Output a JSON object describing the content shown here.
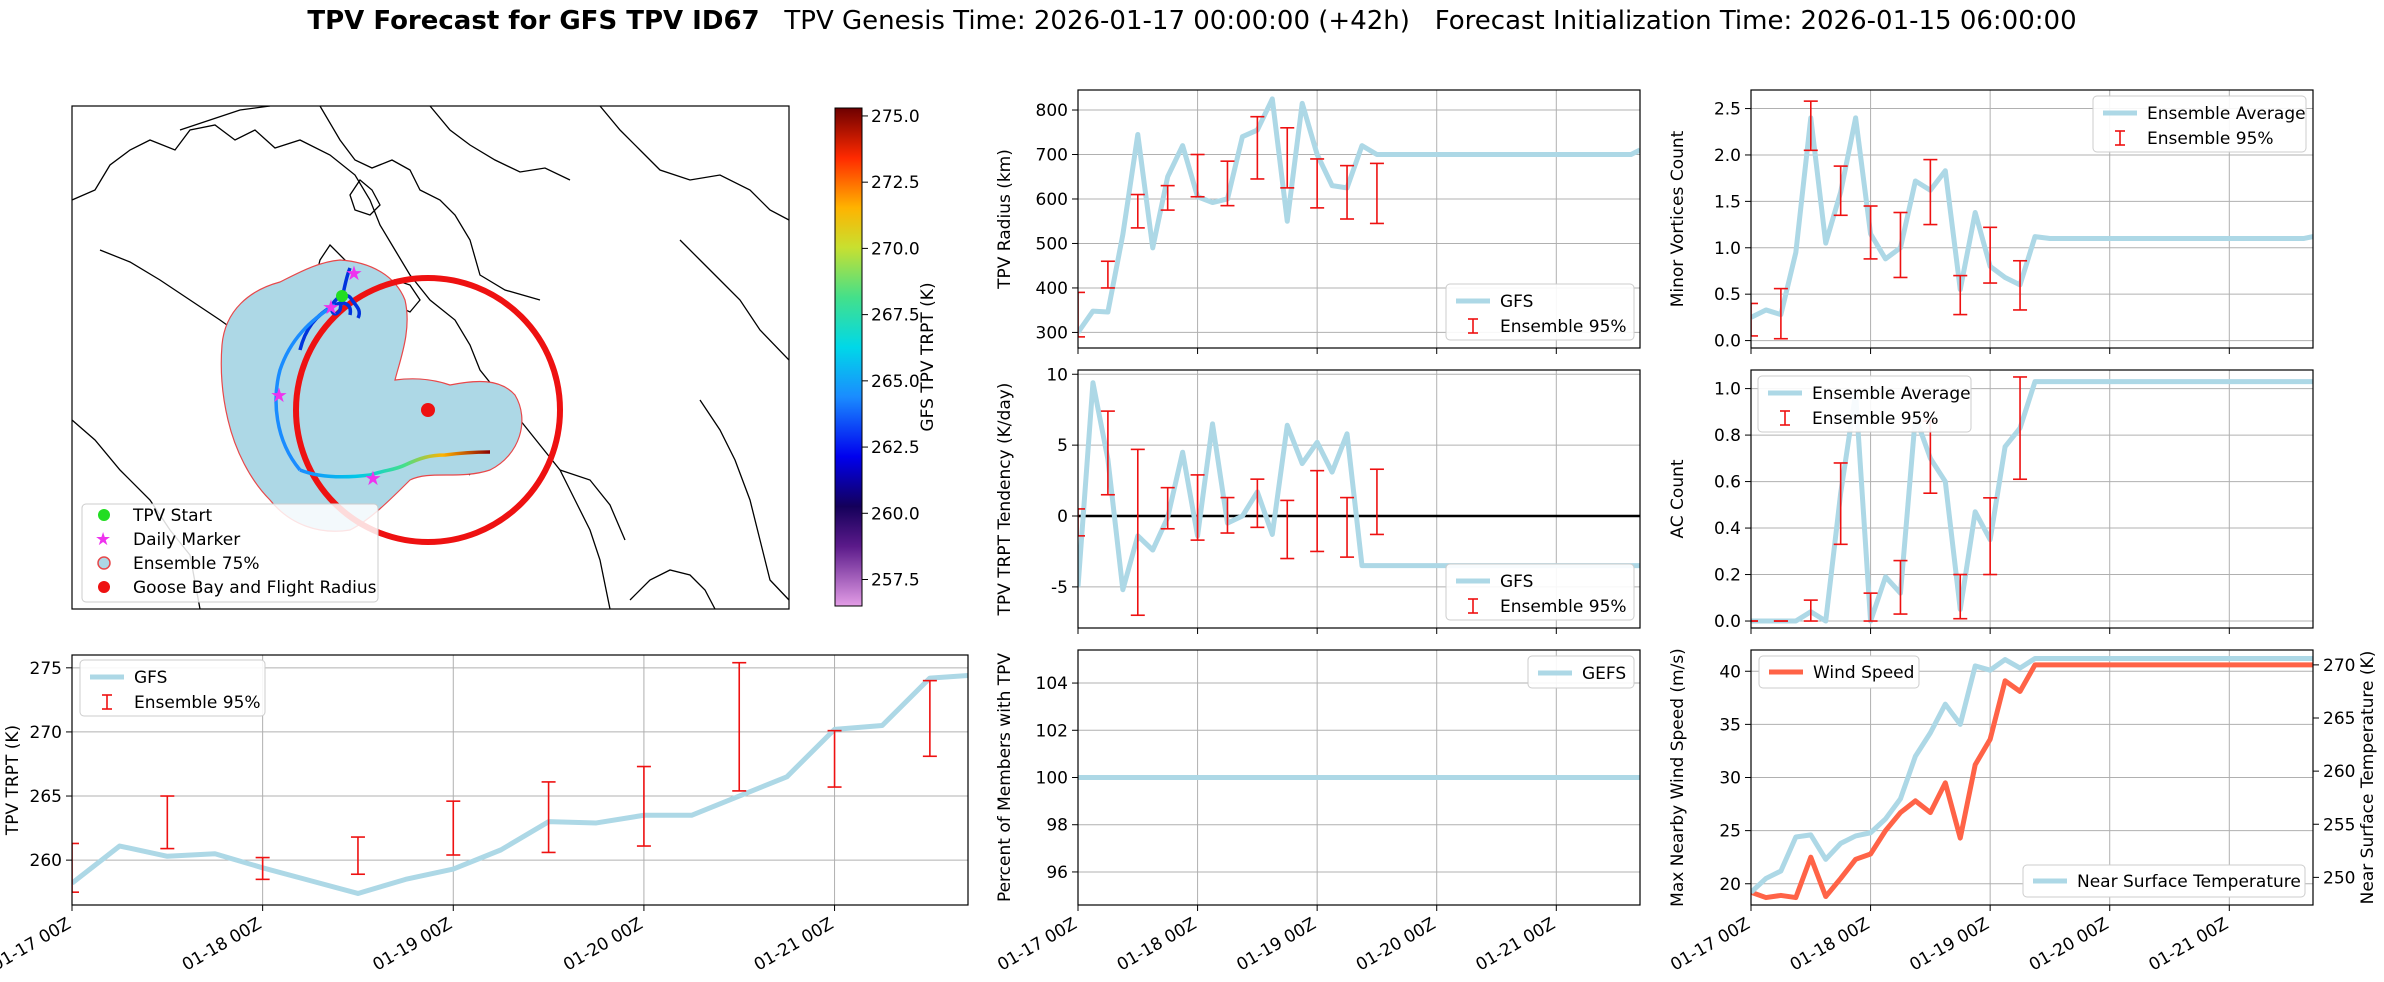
{
  "title": {
    "bold": "TPV Forecast for GFS TPV ID67",
    "genesis": "TPV Genesis Time: 2026-01-17 00:00:00 (+42h)",
    "init": "Forecast Initialization Time: 2026-01-15 06:00:00"
  },
  "map": {
    "colorbar_label": "GFS TPV TRPT (K)",
    "colorbar_ticks": [
      "275.0",
      "272.5",
      "270.0",
      "267.5",
      "265.0",
      "262.5",
      "260.0",
      "257.5"
    ],
    "colorbar_range": [
      256.5,
      275.3
    ],
    "legend": [
      "TPV Start",
      "Daily Marker",
      "Ensemble 75%",
      "Goose Bay and Flight Radius"
    ],
    "colors": {
      "start": "#22dd22",
      "daily": "#ee33ee",
      "ensemble_fill": "#add8e6",
      "ensemble_edge": "#e8484a",
      "goose": "#ee1111"
    }
  },
  "chart_data": [
    {
      "id": "trpt",
      "type": "line",
      "ylabel": "TPV TRPT (K)",
      "ylim": [
        256.5,
        276.0
      ],
      "yticks": [
        260,
        265,
        270,
        275
      ],
      "x_range": [
        0,
        4.7
      ],
      "xticks": [
        0,
        1,
        2,
        3,
        4
      ],
      "xtick_labels": [
        "01-17 00Z",
        "01-18 00Z",
        "01-19 00Z",
        "01-20 00Z",
        "01-21 00Z"
      ],
      "grid": true,
      "legend": {
        "position": "top-left",
        "entries": [
          "GFS",
          "Ensemble 95%"
        ]
      },
      "series": [
        {
          "name": "GFS",
          "x": [
            0,
            0.25,
            0.5,
            0.75,
            1.0,
            1.25,
            1.5,
            1.75,
            2.0,
            2.25,
            2.5,
            2.75,
            3.0,
            3.25,
            3.5,
            3.75,
            4.0,
            4.25,
            4.5,
            4.7
          ],
          "values": [
            258.2,
            261.1,
            260.3,
            260.5,
            259.4,
            258.4,
            257.4,
            258.5,
            259.3,
            260.8,
            263.0,
            262.9,
            263.5,
            263.5,
            265.0,
            266.5,
            270.2,
            270.5,
            274.2,
            274.4
          ]
        }
      ],
      "errorbars": {
        "name": "Ensemble 95%",
        "x": [
          0,
          0.5,
          1.0,
          1.5,
          2.0,
          2.5,
          3.0,
          3.5,
          4.0,
          4.5
        ],
        "low": [
          257.5,
          260.9,
          258.5,
          258.9,
          260.4,
          260.6,
          261.1,
          265.4,
          265.7,
          268.1
        ],
        "high": [
          261.3,
          265.0,
          260.2,
          261.8,
          264.6,
          266.1,
          267.3,
          275.4,
          270.1,
          274.0
        ]
      }
    },
    {
      "id": "radius",
      "type": "line",
      "ylabel": "TPV Radius (km)",
      "ylim": [
        265,
        845
      ],
      "yticks": [
        300,
        400,
        500,
        600,
        700,
        800
      ],
      "x_range": [
        0,
        4.7
      ],
      "xticks": [
        0,
        1,
        2,
        3,
        4
      ],
      "xtick_labels": [
        "01-17 00Z",
        "01-18 00Z",
        "01-19 00Z",
        "01-20 00Z",
        "01-21 00Z"
      ],
      "grid": true,
      "legend": {
        "position": "bottom-right",
        "entries": [
          "GFS",
          "Ensemble 95%"
        ]
      },
      "series": [
        {
          "name": "GFS",
          "x": [
            0,
            0.125,
            0.25,
            0.375,
            0.5,
            0.625,
            0.75,
            0.875,
            1.0,
            1.125,
            1.25,
            1.375,
            1.5,
            1.625,
            1.75,
            1.875,
            2.0,
            2.125,
            2.25,
            2.375,
            2.5,
            2.625,
            2.75,
            2.875,
            3.0,
            3.125,
            3.25,
            3.375,
            3.5,
            3.625,
            3.75,
            3.875,
            4.0,
            4.125,
            4.25,
            4.375,
            4.5,
            4.625,
            4.7
          ],
          "values": [
            300,
            348,
            346,
            520,
            745,
            490,
            650,
            720,
            605,
            592,
            600,
            740,
            755,
            825,
            550,
            815,
            700,
            630,
            625,
            720,
            700,
            700,
            700,
            700,
            700,
            700,
            700,
            700,
            700,
            700,
            700,
            700,
            700,
            700,
            700,
            700,
            700,
            700,
            710
          ]
        },
        {
          "name": "GFS-tail",
          "x": [],
          "values": []
        }
      ],
      "errorbars": {
        "name": "Ensemble 95%",
        "x": [
          0,
          0.25,
          0.5,
          0.75,
          1.0,
          1.25,
          1.5,
          1.75,
          2.0,
          2.25,
          2.5
        ],
        "low": [
          290,
          400,
          535,
          575,
          605,
          585,
          645,
          625,
          580,
          555,
          545
        ],
        "high": [
          390,
          460,
          610,
          630,
          700,
          685,
          785,
          760,
          690,
          675,
          680
        ]
      }
    },
    {
      "id": "minor",
      "type": "line",
      "ylabel": "Minor Vortices Count",
      "ylim": [
        -0.08,
        2.7
      ],
      "yticks": [
        0.0,
        0.5,
        1.0,
        1.5,
        2.0,
        2.5
      ],
      "ytick_labels": [
        "0.0",
        "0.5",
        "1.0",
        "1.5",
        "2.0",
        "2.5"
      ],
      "x_range": [
        0,
        4.7
      ],
      "xticks": [
        0,
        1,
        2,
        3,
        4
      ],
      "grid": true,
      "legend": {
        "position": "top-right",
        "entries": [
          "Ensemble Average",
          "Ensemble 95%"
        ]
      },
      "series": [
        {
          "name": "Ensemble Average",
          "x": [
            0,
            0.125,
            0.25,
            0.375,
            0.5,
            0.625,
            0.75,
            0.875,
            1.0,
            1.125,
            1.25,
            1.375,
            1.5,
            1.625,
            1.75,
            1.875,
            2.0,
            2.125,
            2.25,
            2.375,
            2.5,
            2.625,
            2.75,
            2.875,
            3.0,
            3.125,
            3.25,
            3.375,
            3.5,
            3.625,
            3.75,
            3.875,
            4.0,
            4.125,
            4.25,
            4.375,
            4.5,
            4.625,
            4.7
          ],
          "values": [
            0.25,
            0.33,
            0.28,
            0.95,
            2.4,
            1.05,
            1.6,
            2.4,
            1.15,
            0.88,
            1.0,
            1.72,
            1.62,
            1.83,
            0.55,
            1.38,
            0.8,
            0.68,
            0.6,
            1.12,
            1.1,
            1.1,
            1.1,
            1.1,
            1.1,
            1.1,
            1.1,
            1.1,
            1.1,
            1.1,
            1.1,
            1.1,
            1.1,
            1.1,
            1.1,
            1.1,
            1.1,
            1.1,
            1.12
          ]
        }
      ],
      "errorbars": {
        "name": "Ensemble 95%",
        "x": [
          0,
          0.25,
          0.5,
          0.75,
          1.0,
          1.25,
          1.5,
          1.75,
          2.0,
          2.25
        ],
        "low": [
          0.05,
          0.02,
          2.05,
          1.35,
          0.88,
          0.68,
          1.25,
          0.28,
          0.62,
          0.33
        ],
        "high": [
          0.4,
          0.56,
          2.58,
          1.88,
          1.45,
          1.38,
          1.95,
          0.7,
          1.22,
          0.86
        ]
      }
    },
    {
      "id": "trpt_tendency",
      "type": "line",
      "ylabel": "TPV TRPT Tendency (K/day)",
      "ylim": [
        -7.9,
        10.3
      ],
      "yticks": [
        -5,
        0,
        5,
        10
      ],
      "x_range": [
        0,
        4.7
      ],
      "xticks": [
        0,
        1,
        2,
        3,
        4
      ],
      "grid": true,
      "zero_line": true,
      "legend": {
        "position": "bottom-right",
        "entries": [
          "GFS",
          "Ensemble 95%"
        ]
      },
      "series": [
        {
          "name": "GFS",
          "x": [
            0,
            0.125,
            0.25,
            0.375,
            0.5,
            0.625,
            0.75,
            0.875,
            1.0,
            1.125,
            1.25,
            1.375,
            1.5,
            1.625,
            1.75,
            1.875,
            2.0,
            2.125,
            2.25,
            2.375,
            2.5,
            2.625,
            2.75,
            2.875,
            3.0,
            3.125,
            3.25,
            3.375,
            3.5,
            3.625,
            3.75,
            3.875,
            4.0,
            4.125,
            4.25,
            4.375,
            4.5,
            4.625,
            4.7
          ],
          "values": [
            -5.0,
            9.4,
            4.0,
            -5.2,
            -1.4,
            -2.4,
            -0.1,
            4.5,
            -1.4,
            6.5,
            -0.5,
            0,
            1.7,
            -1.3,
            6.4,
            3.7,
            5.2,
            3.1,
            5.8,
            -3.5,
            -3.5,
            -3.5,
            -3.5,
            -3.5,
            -3.5,
            -3.5,
            -3.5,
            -3.5,
            -3.5,
            -3.5,
            -3.5,
            -3.5,
            -3.5,
            -3.5,
            -3.5,
            -3.5,
            -3.5,
            -3.5,
            -3.5
          ]
        }
      ],
      "errorbars": {
        "name": "Ensemble 95%",
        "x": [
          0,
          0.25,
          0.5,
          0.75,
          1.0,
          1.25,
          1.5,
          1.75,
          2.0,
          2.25,
          2.5
        ],
        "low": [
          -1.4,
          1.5,
          -7.0,
          -0.9,
          -1.7,
          -1.2,
          -0.8,
          -3.0,
          -2.5,
          -2.9,
          -1.3
        ],
        "high": [
          0.5,
          7.4,
          4.7,
          2.0,
          2.9,
          1.3,
          2.6,
          1.1,
          3.2,
          1.3,
          3.3
        ]
      }
    },
    {
      "id": "ac_count",
      "type": "line",
      "ylabel": "AC Count",
      "ylim": [
        -0.03,
        1.08
      ],
      "yticks": [
        0.0,
        0.2,
        0.4,
        0.6,
        0.8,
        1.0
      ],
      "ytick_labels": [
        "0.0",
        "0.2",
        "0.4",
        "0.6",
        "0.8",
        "1.0"
      ],
      "x_range": [
        0,
        4.7
      ],
      "xticks": [
        0,
        1,
        2,
        3,
        4
      ],
      "grid": true,
      "legend": {
        "position": "top-left",
        "entries": [
          "Ensemble Average",
          "Ensemble 95%"
        ]
      },
      "series": [
        {
          "name": "Ensemble Average",
          "x": [
            0,
            0.125,
            0.25,
            0.375,
            0.5,
            0.625,
            0.75,
            0.875,
            1.0,
            1.125,
            1.25,
            1.375,
            1.5,
            1.625,
            1.75,
            1.875,
            2.0,
            2.125,
            2.25,
            2.375,
            2.5,
            2.625,
            2.75,
            2.875,
            3.0,
            3.125,
            3.25,
            3.375,
            3.5,
            3.625,
            3.75,
            3.875,
            4.0,
            4.125,
            4.25,
            4.375,
            4.5,
            4.625,
            4.7
          ],
          "values": [
            0,
            0,
            0,
            0,
            0.04,
            0.0,
            0.55,
            0.98,
            0,
            0.19,
            0.12,
            0.88,
            0.7,
            0.6,
            0.05,
            0.47,
            0.35,
            0.75,
            0.83,
            1.03,
            1.03,
            1.03,
            1.03,
            1.03,
            1.03,
            1.03,
            1.03,
            1.03,
            1.03,
            1.03,
            1.03,
            1.03,
            1.03,
            1.03,
            1.03,
            1.03,
            1.03,
            1.03,
            1.03
          ]
        }
      ],
      "errorbars": {
        "name": "Ensemble 95%",
        "x": [
          0,
          0.25,
          0.5,
          0.75,
          1.0,
          1.25,
          1.5,
          1.75,
          2.0,
          2.25
        ],
        "low": [
          0,
          0,
          0,
          0.33,
          0,
          0.03,
          0.55,
          0.01,
          0.2,
          0.61
        ],
        "high": [
          0,
          0,
          0.09,
          0.68,
          0.12,
          0.26,
          0.86,
          0.2,
          0.53,
          1.05
        ]
      }
    },
    {
      "id": "members",
      "type": "line",
      "ylabel": "Percent of Members with TPV",
      "ylim": [
        94.6,
        105.4
      ],
      "yticks": [
        96,
        98,
        100,
        102,
        104
      ],
      "x_range": [
        0,
        4.7
      ],
      "xticks": [
        0,
        1,
        2,
        3,
        4
      ],
      "xtick_labels": [
        "01-17 00Z",
        "01-18 00Z",
        "01-19 00Z",
        "01-20 00Z",
        "01-21 00Z"
      ],
      "grid": true,
      "legend": {
        "position": "top-right",
        "entries": [
          "GEFS"
        ]
      },
      "series": [
        {
          "name": "GEFS",
          "x": [
            0,
            4.7
          ],
          "values": [
            100,
            100
          ]
        }
      ]
    },
    {
      "id": "wind_temp",
      "type": "line",
      "ylabel": "Max Nearby Wind Speed (m/s)",
      "ylabel_right": "Near Surface Temperature (K)",
      "ylim": [
        18.0,
        42.0
      ],
      "yticks": [
        20,
        25,
        30,
        35,
        40
      ],
      "ylim_right": [
        247.4,
        271.4
      ],
      "yticks_right": [
        250,
        255,
        260,
        265,
        270
      ],
      "x_range": [
        0,
        4.7
      ],
      "xticks": [
        0,
        1,
        2,
        3,
        4
      ],
      "xtick_labels": [
        "01-17 00Z",
        "01-18 00Z",
        "01-19 00Z",
        "01-20 00Z",
        "01-21 00Z"
      ],
      "grid": true,
      "legend": {
        "position": "top-left / bottom-right",
        "entries": [
          "Wind Speed",
          "Near Surface Temperature"
        ]
      },
      "colors": {
        "wind": "#ff6347",
        "temp": "#add8e6",
        "left_axis": "#ff6347",
        "right_axis": "#4169e1"
      },
      "series": [
        {
          "name": "Wind Speed",
          "axis": "left",
          "x": [
            0,
            0.125,
            0.25,
            0.375,
            0.5,
            0.625,
            0.75,
            0.875,
            1.0,
            1.125,
            1.25,
            1.375,
            1.5,
            1.625,
            1.75,
            1.875,
            2.0,
            2.125,
            2.25,
            2.375,
            2.5,
            2.625,
            2.75,
            2.875,
            3.0,
            3.125,
            3.25,
            3.375,
            3.5,
            3.625,
            3.75,
            3.875,
            4.0,
            4.125,
            4.25,
            4.375,
            4.5,
            4.625,
            4.7
          ],
          "values": [
            19.2,
            18.7,
            18.9,
            18.7,
            22.5,
            18.8,
            20.5,
            22.3,
            22.8,
            25.0,
            26.7,
            27.8,
            26.7,
            29.5,
            24.3,
            31.2,
            33.6,
            39.1,
            38.1,
            40.6,
            40.6,
            40.6,
            40.6,
            40.6,
            40.6,
            40.6,
            40.6,
            40.6,
            40.6,
            40.6,
            40.6,
            40.6,
            40.6,
            40.6,
            40.6,
            40.6,
            40.6,
            40.6,
            40.6
          ]
        },
        {
          "name": "Near Surface Temperature",
          "axis": "right",
          "x": [
            0,
            0.125,
            0.25,
            0.375,
            0.5,
            0.625,
            0.75,
            0.875,
            1.0,
            1.125,
            1.25,
            1.375,
            1.5,
            1.625,
            1.75,
            1.875,
            2.0,
            2.125,
            2.25,
            2.375,
            2.5,
            2.625,
            2.75,
            2.875,
            3.0,
            3.125,
            3.25,
            3.375,
            3.5,
            3.625,
            3.75,
            3.875,
            4.0,
            4.125,
            4.25,
            4.375,
            4.5,
            4.625,
            4.7
          ],
          "values": [
            248.6,
            249.9,
            250.6,
            253.8,
            254.0,
            251.7,
            253.2,
            253.9,
            254.2,
            255.5,
            257.4,
            261.4,
            263.6,
            266.3,
            264.4,
            269.9,
            269.5,
            270.5,
            269.7,
            270.6,
            270.6,
            270.6,
            270.6,
            270.6,
            270.6,
            270.6,
            270.6,
            270.6,
            270.6,
            270.6,
            270.6,
            270.6,
            270.6,
            270.6,
            270.6,
            270.6,
            270.6,
            270.6,
            270.6
          ]
        }
      ]
    }
  ]
}
